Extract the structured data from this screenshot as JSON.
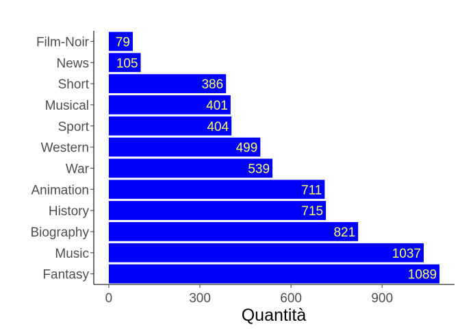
{
  "chart_data": {
    "type": "bar",
    "orientation": "horizontal",
    "categories": [
      "Film-Noir",
      "News",
      "Short",
      "Musical",
      "Sport",
      "Western",
      "War",
      "Animation",
      "History",
      "Biography",
      "Music",
      "Fantasy"
    ],
    "values": [
      79,
      105,
      386,
      401,
      404,
      499,
      539,
      711,
      715,
      821,
      1037,
      1089
    ],
    "data_labels": [
      "79",
      "105",
      "386",
      "401",
      "404",
      "499",
      "539",
      "711",
      "715",
      "821",
      "1037",
      "1089"
    ],
    "xlabel": "Quantità",
    "ylabel": "",
    "xticks": [
      0,
      300,
      600,
      900
    ],
    "xtick_labels": [
      "0",
      "300",
      "600",
      "900"
    ],
    "xlim": [
      -49.5,
      1138.5
    ],
    "grid": false,
    "colors": {
      "bar": "#0000FF",
      "data_label": "#FFFF66",
      "axis": "#000000",
      "tick_label": "#4D4D4D"
    }
  }
}
